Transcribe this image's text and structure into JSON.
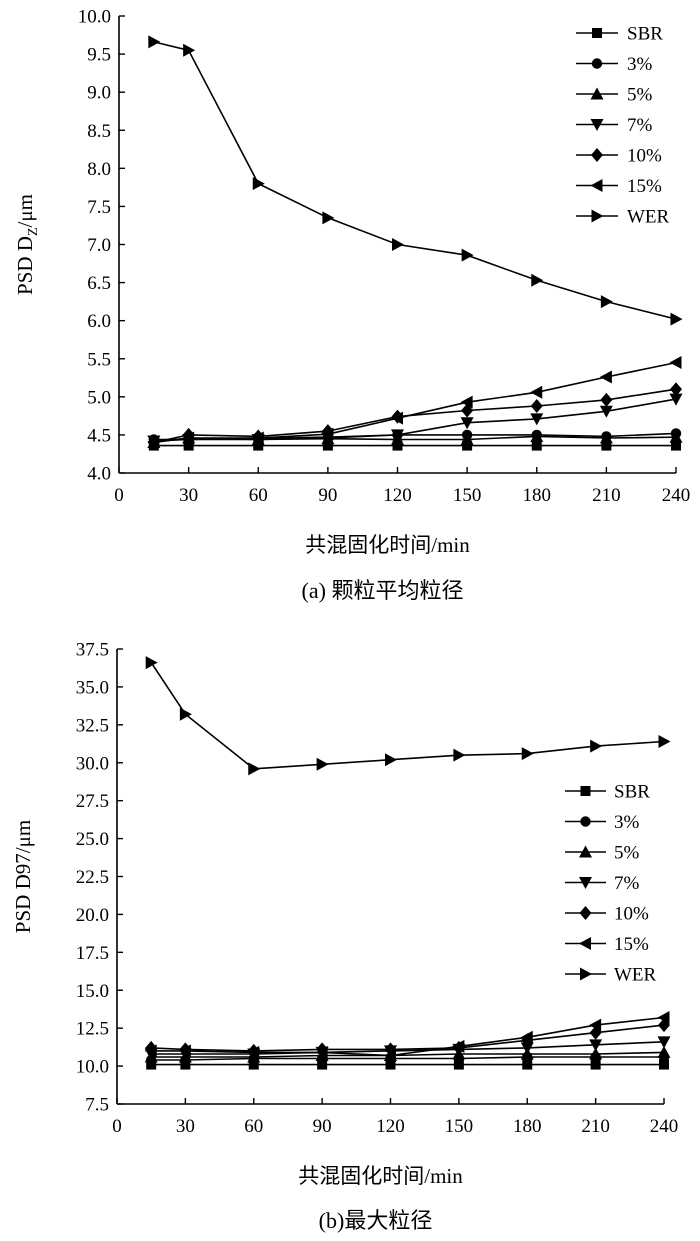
{
  "chart_data": [
    {
      "type": "line",
      "caption": "(a) 颗粒平均粒径",
      "xlabel": "共混固化时间/min",
      "ylabel": "PSD D",
      "ylabel_sub": "Z",
      "ylabel_unit": "/μm",
      "xlim": [
        0,
        240
      ],
      "ylim": [
        4.0,
        10.0
      ],
      "xticks": [
        0,
        30,
        60,
        90,
        120,
        150,
        180,
        210,
        240
      ],
      "yticks": [
        4.0,
        4.5,
        5.0,
        5.5,
        6.0,
        6.5,
        7.0,
        7.5,
        8.0,
        8.5,
        9.0,
        9.5,
        10.0
      ],
      "x": [
        15,
        30,
        60,
        90,
        120,
        150,
        180,
        210,
        240
      ],
      "legend_position": "top-right",
      "series": [
        {
          "name": "SBR",
          "marker": "square",
          "values": [
            4.36,
            4.36,
            4.36,
            4.36,
            4.36,
            4.36,
            4.36,
            4.36,
            4.36
          ]
        },
        {
          "name": "3%",
          "marker": "circle",
          "values": [
            4.44,
            4.44,
            4.46,
            4.47,
            4.5,
            4.5,
            4.5,
            4.48,
            4.52
          ]
        },
        {
          "name": "5%",
          "marker": "triangle-up",
          "values": [
            4.4,
            4.46,
            4.44,
            4.45,
            4.44,
            4.44,
            4.48,
            4.46,
            4.47
          ]
        },
        {
          "name": "7%",
          "marker": "triangle-down",
          "values": [
            4.42,
            4.44,
            4.44,
            4.46,
            4.5,
            4.66,
            4.71,
            4.81,
            4.97
          ]
        },
        {
          "name": "10%",
          "marker": "diamond",
          "values": [
            4.4,
            4.5,
            4.48,
            4.55,
            4.74,
            4.82,
            4.88,
            4.96,
            5.1
          ]
        },
        {
          "name": "15%",
          "marker": "triangle-left",
          "values": [
            4.41,
            4.46,
            4.46,
            4.51,
            4.72,
            4.93,
            5.06,
            5.26,
            5.45
          ]
        },
        {
          "name": "WER",
          "marker": "triangle-right",
          "values": [
            9.66,
            9.55,
            7.8,
            7.35,
            7.0,
            6.86,
            6.53,
            6.25,
            6.02
          ]
        }
      ]
    },
    {
      "type": "line",
      "caption": "(b)最大粒径",
      "xlabel": "共混固化时间/min",
      "ylabel": "PSD D97/μm",
      "xlim": [
        0,
        240
      ],
      "ylim": [
        7.5,
        37.5
      ],
      "xticks": [
        0,
        30,
        60,
        90,
        120,
        150,
        180,
        210,
        240
      ],
      "yticks": [
        7.5,
        10.0,
        12.5,
        15.0,
        17.5,
        20.0,
        22.5,
        25.0,
        27.5,
        30.0,
        32.5,
        35.0,
        37.5
      ],
      "x": [
        15,
        30,
        60,
        90,
        120,
        150,
        180,
        210,
        240
      ],
      "legend_position": "right",
      "series": [
        {
          "name": "SBR",
          "marker": "square",
          "values": [
            10.1,
            10.1,
            10.1,
            10.1,
            10.1,
            10.1,
            10.1,
            10.1,
            10.1
          ]
        },
        {
          "name": "3%",
          "marker": "circle",
          "values": [
            10.4,
            10.4,
            10.5,
            10.5,
            10.5,
            10.5,
            10.6,
            10.6,
            10.6
          ]
        },
        {
          "name": "5%",
          "marker": "triangle-up",
          "values": [
            10.6,
            10.6,
            10.6,
            10.7,
            10.7,
            10.8,
            10.8,
            10.8,
            10.9
          ]
        },
        {
          "name": "7%",
          "marker": "triangle-down",
          "values": [
            10.8,
            10.8,
            10.8,
            10.9,
            11.0,
            11.1,
            11.2,
            11.4,
            11.6
          ]
        },
        {
          "name": "10%",
          "marker": "diamond",
          "values": [
            11.2,
            11.1,
            11.0,
            11.1,
            11.1,
            11.2,
            11.7,
            12.2,
            12.7
          ]
        },
        {
          "name": "15%",
          "marker": "triangle-left",
          "values": [
            11.0,
            11.0,
            10.9,
            10.9,
            10.7,
            11.3,
            11.9,
            12.7,
            13.2
          ]
        },
        {
          "name": "WER",
          "marker": "triangle-right",
          "values": [
            36.6,
            33.2,
            29.6,
            29.9,
            30.2,
            30.5,
            30.6,
            31.1,
            31.4
          ]
        }
      ]
    }
  ]
}
